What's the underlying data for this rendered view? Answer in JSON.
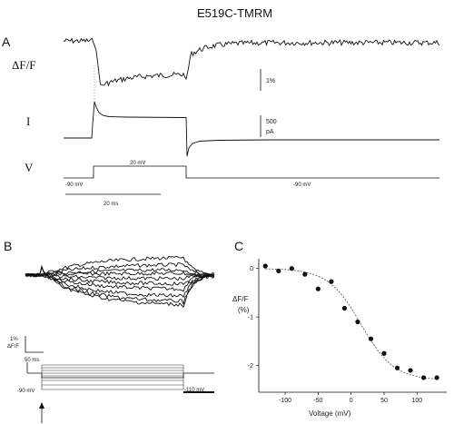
{
  "figure": {
    "title": "E519C-TMRM",
    "panels": {
      "a": {
        "letter": "A",
        "row_labels": {
          "fluorescence": "ΔF/F",
          "current": "I",
          "voltage": "V"
        },
        "scale_bars": {
          "fluorescence": "1%",
          "current_value": "500",
          "current_unit": "pA",
          "time": "20 ms"
        },
        "voltage_labels": {
          "holding_left": "-90 mV",
          "step": "20 mV",
          "holding_right": "-90 mV"
        }
      },
      "b": {
        "letter": "B",
        "scale_bars": {
          "fluorescence_value": "1%",
          "fluorescence_unit": "ΔF/F",
          "time": "50 ms"
        },
        "protocol_labels": {
          "holding": "-90 mV",
          "step_min": "-110 mV"
        }
      },
      "c": {
        "letter": "C"
      }
    }
  },
  "chart_data": {
    "type": "scatter",
    "xlabel": "Voltage (mV)",
    "ylabel_line1": "ΔF/F",
    "ylabel_line2": "(%)",
    "xlim": [
      -140,
      145
    ],
    "ylim": [
      -2.55,
      0.2
    ],
    "x_ticks": [
      -100,
      -50,
      0,
      50,
      100
    ],
    "x_tick_labels": [
      "-100",
      "-50",
      "0",
      "50",
      "100"
    ],
    "y_ticks": [
      0,
      -1,
      -2
    ],
    "y_tick_labels": [
      "0",
      "-1",
      "-2"
    ],
    "grid": false,
    "series": [
      {
        "x": [
          -130,
          -110,
          -90,
          -70,
          -50,
          -30,
          -10,
          10,
          30,
          50,
          70,
          90,
          110,
          130
        ],
        "y": [
          0.05,
          -0.05,
          0.0,
          -0.12,
          -0.42,
          -0.27,
          -0.82,
          -1.1,
          -1.45,
          -1.75,
          -2.05,
          -2.1,
          -2.25,
          -2.25
        ]
      }
    ],
    "fit": {
      "style": "dashed",
      "bottom": -2.3,
      "v_half": 15,
      "slope": 25
    }
  }
}
